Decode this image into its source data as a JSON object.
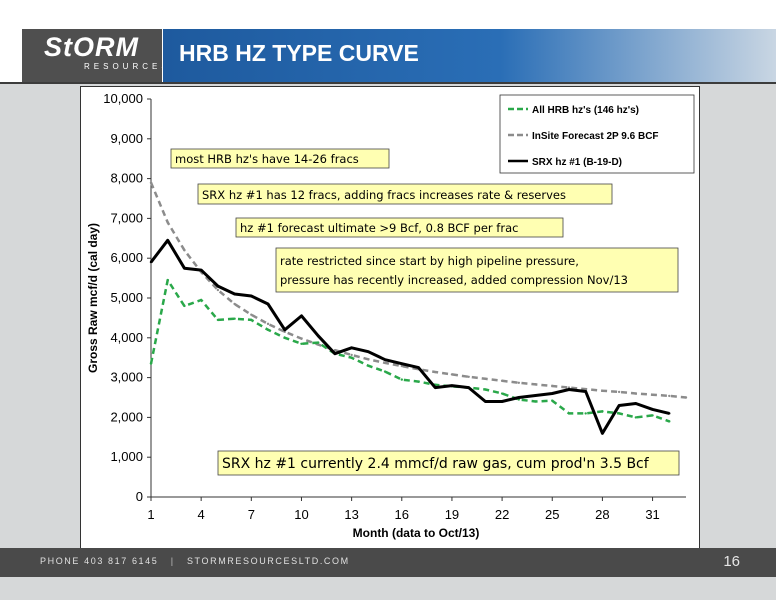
{
  "header": {
    "logo_text": "StORM",
    "logo_sub": "RESOURCES",
    "title": "HRB HZ TYPE CURVE"
  },
  "footer": {
    "phone": "PHONE 403 817 6145",
    "separator": "|",
    "website": "STORMRESOURCESLTD.COM",
    "page": "16"
  },
  "colors": {
    "green_series": "#2aa84a",
    "gray_series": "#8c8c8c",
    "black_series": "#000000",
    "annotation_fill": "#ffffb2",
    "title_bar": "#2a6eb6"
  },
  "chart_data": {
    "type": "line",
    "xlabel": "Month (data to Oct/13)",
    "ylabel": "Gross Raw mcf/d (cal day)",
    "xlim": [
      1,
      33
    ],
    "ylim": [
      0,
      10000
    ],
    "xticks": [
      1,
      4,
      7,
      10,
      13,
      16,
      19,
      22,
      25,
      28,
      31
    ],
    "yticks": [
      0,
      1000,
      2000,
      3000,
      4000,
      5000,
      6000,
      7000,
      8000,
      9000,
      10000
    ],
    "ytick_labels": [
      "0",
      "1,000",
      "2,000",
      "3,000",
      "4,000",
      "5,000",
      "6,000",
      "7,000",
      "8,000",
      "9,000",
      "10,000"
    ],
    "legend_position": "top-right",
    "series": [
      {
        "name": "All HRB hz's (146 hz's)",
        "style": "dashed",
        "color": "#2aa84a",
        "x": [
          1,
          2,
          3,
          4,
          5,
          6,
          7,
          8,
          9,
          10,
          11,
          12,
          13,
          14,
          15,
          16,
          17,
          18,
          19,
          20,
          21,
          22,
          23,
          24,
          25,
          26,
          27,
          28,
          29,
          30,
          31,
          32
        ],
        "values": [
          3350,
          5450,
          4800,
          4950,
          4450,
          4480,
          4450,
          4200,
          4000,
          3850,
          3880,
          3600,
          3500,
          3300,
          3150,
          2950,
          2900,
          2820,
          2780,
          2750,
          2700,
          2600,
          2450,
          2400,
          2420,
          2100,
          2100,
          2150,
          2100,
          2000,
          2050,
          1900
        ]
      },
      {
        "name": "InSite Forecast 2P 9.6 BCF",
        "style": "dashed",
        "color": "#8c8c8c",
        "x": [
          1,
          2,
          3,
          4,
          5,
          6,
          7,
          8,
          9,
          10,
          11,
          12,
          13,
          14,
          15,
          16,
          17,
          18,
          19,
          20,
          21,
          22,
          23,
          24,
          25,
          26,
          27,
          28,
          29,
          30,
          31,
          32,
          33
        ],
        "values": [
          7900,
          6900,
          6200,
          5650,
          5200,
          4850,
          4580,
          4350,
          4150,
          3980,
          3830,
          3690,
          3570,
          3460,
          3370,
          3290,
          3210,
          3140,
          3080,
          3020,
          2970,
          2920,
          2870,
          2830,
          2790,
          2750,
          2710,
          2670,
          2640,
          2600,
          2570,
          2540,
          2500
        ]
      },
      {
        "name": "SRX hz #1 (B-19-D)",
        "style": "solid",
        "color": "#000000",
        "x": [
          1,
          2,
          3,
          4,
          5,
          6,
          7,
          8,
          9,
          10,
          11,
          12,
          13,
          14,
          15,
          16,
          17,
          18,
          19,
          20,
          21,
          22,
          23,
          24,
          25,
          26,
          27,
          28,
          29,
          30,
          31,
          32
        ],
        "values": [
          5900,
          6450,
          5750,
          5700,
          5300,
          5100,
          5050,
          4850,
          4200,
          4550,
          4050,
          3600,
          3750,
          3650,
          3450,
          3350,
          3250,
          2750,
          2800,
          2750,
          2400,
          2400,
          2500,
          2550,
          2600,
          2700,
          2650,
          1600,
          2300,
          2350,
          2200,
          2100
        ]
      }
    ],
    "annotations": [
      "most HRB hz's have 14-26 fracs",
      "SRX hz #1 has 12 fracs, adding fracs increases rate & reserves",
      "hz #1 forecast ultimate >9 Bcf, 0.8 BCF per frac",
      "rate restricted since start by high pipeline pressure,",
      "pressure has recently increased, added compression Nov/13",
      "SRX hz #1 currently 2.4 mmcf/d raw gas, cum prod'n 3.5 Bcf"
    ]
  }
}
